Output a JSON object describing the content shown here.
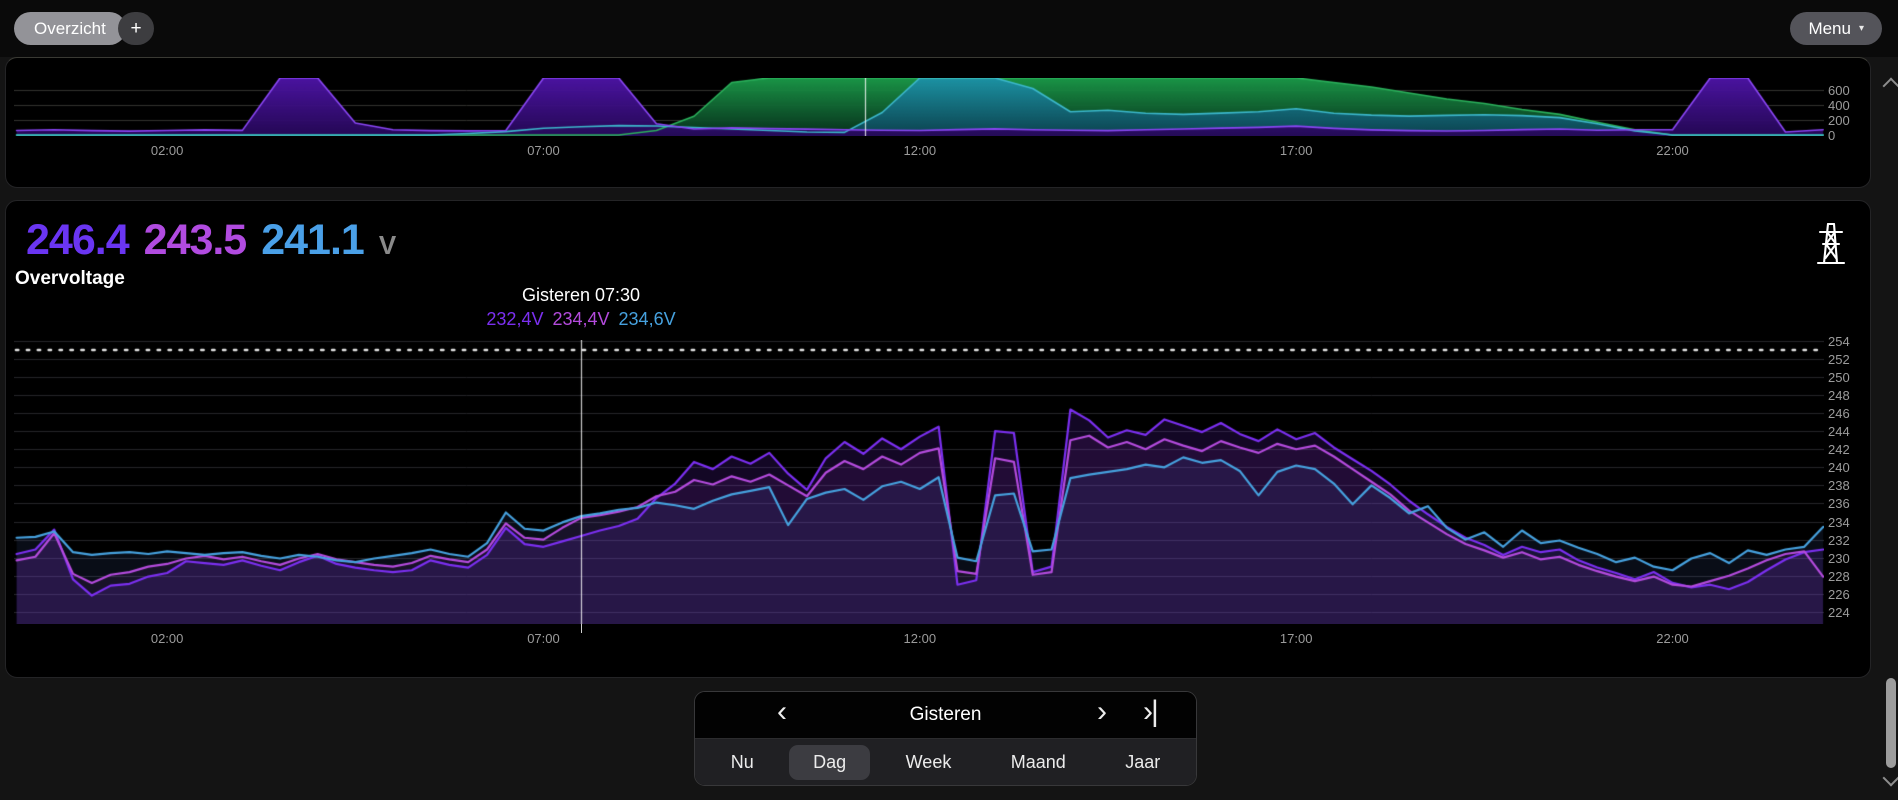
{
  "toolbar": {
    "overview_label": "Overzicht",
    "add_label": "+",
    "menu_label": "Menu",
    "menu_caret": "▼"
  },
  "header": {
    "unit": "V",
    "subtitle": "Overvoltage",
    "values": [
      {
        "text": "246.4",
        "color": "#6a35f2"
      },
      {
        "text": "243.5",
        "color": "#b14be0"
      },
      {
        "text": "241.1",
        "color": "#4aa0e8"
      }
    ]
  },
  "tooltip": {
    "title": "Gisteren 07:30",
    "values": [
      {
        "text": "232,4V",
        "color": "#7b2ff0"
      },
      {
        "text": "234,4V",
        "color": "#b44bdd"
      },
      {
        "text": "234,6V",
        "color": "#46a1de"
      }
    ]
  },
  "nav": {
    "period_label": "Gisteren",
    "prev_icon": "‹",
    "next_icon": "›",
    "end_icon": "›|",
    "tabs": [
      {
        "label": "Nu",
        "selected": false
      },
      {
        "label": "Dag",
        "selected": true
      },
      {
        "label": "Week",
        "selected": false
      },
      {
        "label": "Maand",
        "selected": false
      },
      {
        "label": "Jaar",
        "selected": false
      }
    ]
  },
  "chart_data": [
    {
      "type": "area",
      "title": "",
      "ylabel": "",
      "ylim": [
        0,
        760
      ],
      "yticks": [
        0,
        200,
        400,
        600
      ],
      "x_tick_hours": [
        2,
        7,
        12,
        17,
        22
      ],
      "x_ticks": [
        "02:00",
        "07:00",
        "12:00",
        "17:00",
        "22:00"
      ],
      "x_step_hours": 0.5,
      "cursor_hour": 11.27,
      "grid": true,
      "legend": "none",
      "series": [
        {
          "name": "green-area",
          "color": "#2bb25c",
          "fill_top": "rgba(27,156,74,0.95)",
          "fill_bottom": "rgba(7,48,28,0.95)",
          "values": [
            0,
            0,
            0,
            0,
            0,
            0,
            0,
            0,
            0,
            0,
            0,
            0,
            0,
            0,
            0,
            0,
            0,
            60,
            250,
            700,
            780,
            780,
            780,
            780,
            780,
            780,
            780,
            780,
            780,
            780,
            780,
            780,
            780,
            780,
            780,
            700,
            640,
            560,
            480,
            420,
            340,
            275,
            170,
            70,
            0,
            0,
            0,
            0,
            0
          ]
        },
        {
          "name": "teal-area",
          "color": "#3cb8cc",
          "fill_top": "rgba(28,146,168,0.95)",
          "fill_bottom": "rgba(12,66,80,0.95)",
          "values": [
            0,
            0,
            0,
            0,
            0,
            0,
            0,
            0,
            0,
            0,
            0,
            0,
            20,
            45,
            90,
            110,
            125,
            120,
            100,
            80,
            60,
            40,
            35,
            300,
            780,
            780,
            780,
            620,
            310,
            330,
            290,
            275,
            292,
            310,
            350,
            290,
            265,
            252,
            262,
            270,
            258,
            232,
            150,
            55,
            0,
            0,
            0,
            0,
            0
          ]
        },
        {
          "name": "purple-area",
          "color": "#8a46f5",
          "fill_top": "rgba(78,20,168,0.95)",
          "fill_bottom": "rgba(38,8,88,0.95)",
          "values": [
            60,
            70,
            58,
            52,
            60,
            68,
            62,
            780,
            780,
            160,
            70,
            58,
            55,
            60,
            780,
            780,
            780,
            150,
            80,
            95,
            85,
            78,
            70,
            64,
            60,
            72,
            82,
            70,
            64,
            58,
            70,
            80,
            92,
            102,
            118,
            88,
            68,
            58,
            54,
            60,
            72,
            80,
            64,
            70,
            70,
            780,
            780,
            40,
            70
          ]
        }
      ]
    },
    {
      "type": "line",
      "title": "Overvoltage",
      "ylabel": "V",
      "ylim": [
        222.6,
        254.1
      ],
      "yticks": [
        224,
        226,
        228,
        230,
        232,
        234,
        236,
        238,
        240,
        242,
        244,
        246,
        248,
        250,
        252,
        254
      ],
      "threshold": 253,
      "x_tick_hours": [
        2,
        7,
        12,
        17,
        22
      ],
      "x_ticks": [
        "02:00",
        "07:00",
        "12:00",
        "17:00",
        "22:00"
      ],
      "x_step_hours": 0.25,
      "cursor_hour": 7.5,
      "grid": true,
      "legend": "none",
      "series": [
        {
          "name": "phase-purple",
          "color": "#7b2ff0",
          "fill": "rgba(110,40,220,0.17)",
          "max": 246.4,
          "value_at_cursor": 232.4,
          "values": [
            230.4,
            230.9,
            233.1,
            227.6,
            225.8,
            226.9,
            227.1,
            227.9,
            228.3,
            229.6,
            229.4,
            229.2,
            229.7,
            229.1,
            228.6,
            229.5,
            230.2,
            229.3,
            228.9,
            228.6,
            228.4,
            228.6,
            229.7,
            229.2,
            228.9,
            230.3,
            233.3,
            231.5,
            231.2,
            231.8,
            232.4,
            233.0,
            233.5,
            234.3,
            236.6,
            238.2,
            240.6,
            239.8,
            241.2,
            240.4,
            241.6,
            239.3,
            237.5,
            241.0,
            242.8,
            241.5,
            243.2,
            242.0,
            243.4,
            244.5,
            227.0,
            227.5,
            244.0,
            243.8,
            228.4,
            229.0,
            246.4,
            245.2,
            243.3,
            244.1,
            243.6,
            245.3,
            244.6,
            243.9,
            244.9,
            243.7,
            242.9,
            244.2,
            243.1,
            243.8,
            242.2,
            240.9,
            239.6,
            238.1,
            236.3,
            234.8,
            233.4,
            232.2,
            231.4,
            230.3,
            231.2,
            230.6,
            230.9,
            229.7,
            228.9,
            228.3,
            227.6,
            228.4,
            227.2,
            226.7,
            227.0,
            226.5,
            227.3,
            228.6,
            229.8,
            230.6,
            230.9
          ]
        },
        {
          "name": "phase-magenta",
          "color": "#b44bdd",
          "fill": "rgba(170,60,210,0.10)",
          "max": 243.5,
          "value_at_cursor": 234.4,
          "values": [
            229.7,
            230.1,
            232.7,
            228.2,
            227.2,
            228.1,
            228.4,
            229.0,
            229.3,
            229.9,
            230.2,
            229.8,
            230.1,
            229.6,
            229.2,
            229.9,
            230.4,
            229.8,
            229.5,
            229.2,
            229.0,
            229.4,
            230.2,
            229.8,
            229.5,
            230.9,
            233.8,
            232.2,
            232.0,
            233.3,
            234.4,
            234.7,
            235.1,
            235.6,
            236.8,
            237.3,
            238.6,
            238.1,
            239.0,
            238.4,
            239.2,
            238.0,
            236.8,
            239.4,
            240.7,
            239.8,
            241.2,
            240.3,
            241.6,
            242.1,
            228.5,
            228.2,
            241.0,
            240.6,
            228.1,
            228.4,
            243.0,
            243.5,
            242.2,
            242.8,
            242.0,
            243.1,
            242.4,
            241.8,
            242.9,
            242.2,
            241.6,
            242.6,
            242.0,
            242.4,
            241.2,
            239.8,
            238.4,
            237.0,
            235.2,
            233.9,
            232.6,
            231.5,
            230.8,
            230.0,
            230.6,
            229.8,
            230.1,
            229.2,
            228.5,
            227.9,
            227.4,
            227.9,
            227.0,
            226.8,
            227.4,
            228.0,
            228.8,
            229.7,
            230.4,
            230.7,
            227.9
          ]
        },
        {
          "name": "phase-blue",
          "color": "#46a1de",
          "fill": "rgba(90,130,230,0.10)",
          "max": 241.1,
          "value_at_cursor": 234.6,
          "values": [
            232.2,
            232.3,
            232.9,
            230.6,
            230.3,
            230.5,
            230.6,
            230.4,
            230.7,
            230.5,
            230.3,
            230.5,
            230.6,
            230.2,
            229.9,
            230.3,
            230.1,
            229.7,
            229.5,
            229.9,
            230.2,
            230.5,
            230.9,
            230.4,
            230.1,
            231.6,
            235.0,
            233.2,
            233.0,
            233.9,
            234.6,
            234.9,
            235.3,
            235.5,
            236.1,
            235.8,
            235.4,
            236.3,
            237.0,
            237.4,
            237.8,
            233.6,
            236.5,
            237.2,
            237.6,
            236.4,
            237.9,
            238.4,
            237.6,
            238.9,
            230.0,
            229.6,
            236.9,
            237.1,
            230.7,
            230.9,
            238.8,
            239.2,
            239.5,
            239.8,
            240.3,
            240.0,
            241.1,
            240.5,
            240.8,
            239.6,
            236.9,
            239.5,
            240.2,
            239.8,
            238.2,
            235.9,
            238.0,
            236.6,
            234.9,
            235.7,
            233.3,
            232.0,
            232.8,
            231.2,
            233.0,
            231.6,
            231.9,
            231.1,
            230.4,
            229.5,
            230.0,
            229.0,
            228.6,
            229.9,
            230.5,
            229.4,
            230.8,
            230.3,
            230.9,
            231.2,
            233.4
          ]
        }
      ]
    }
  ]
}
